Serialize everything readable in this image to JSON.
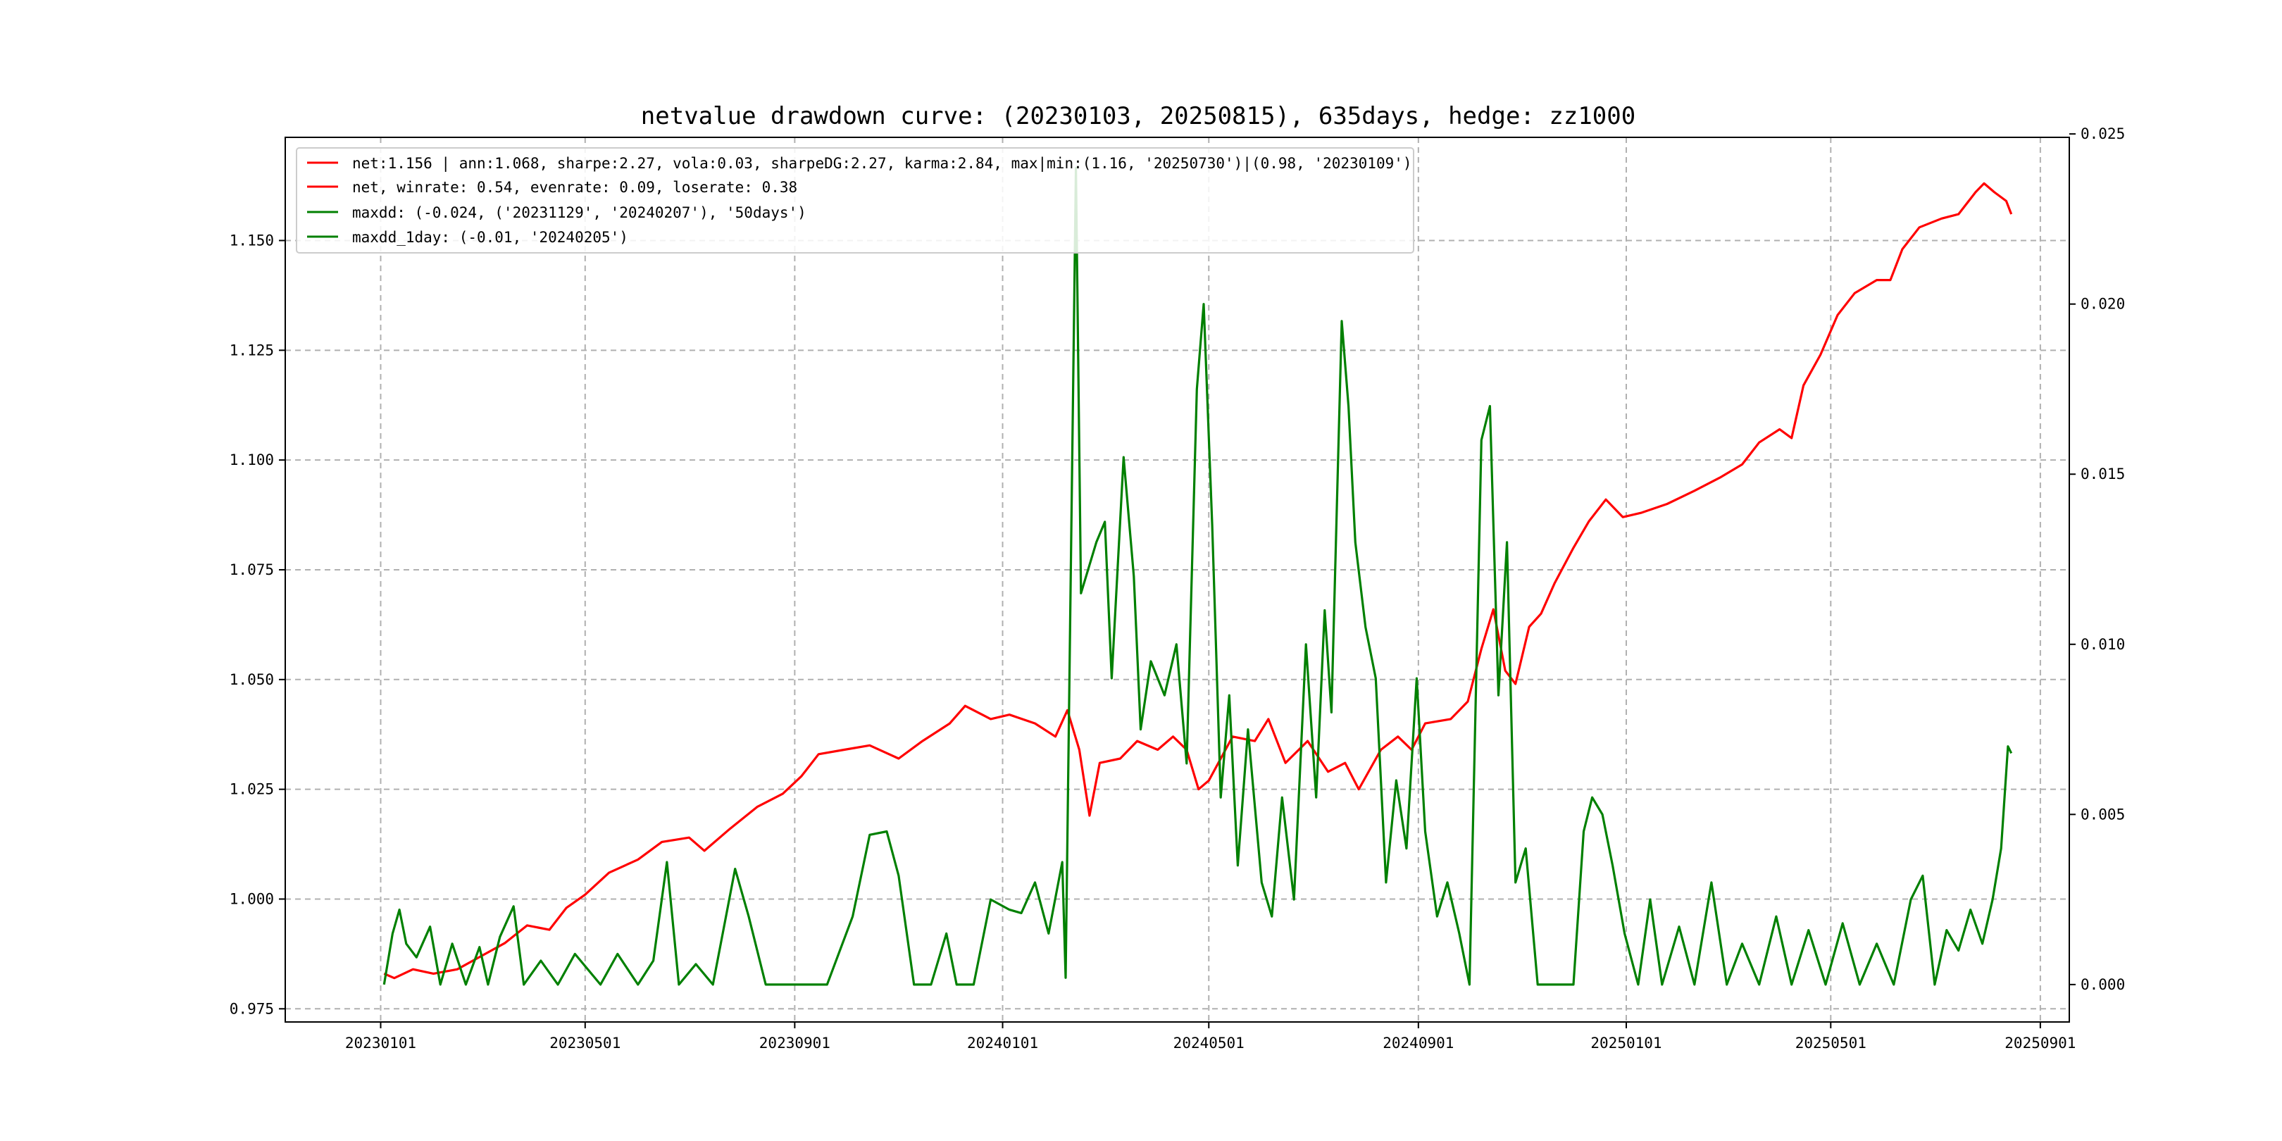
{
  "chart_data": {
    "type": "line",
    "title": "netvalue drawdown curve: (20230103, 20250815), 635days, hedge: zz1000",
    "xlabel": "",
    "ylabel": "",
    "x_ticks": [
      "20230101",
      "20230501",
      "20230901",
      "20240101",
      "20240501",
      "20240901",
      "20250101",
      "20250501",
      "20250901"
    ],
    "y_left_ticks": [
      "0.975",
      "1.000",
      "1.025",
      "1.050",
      "1.075",
      "1.100",
      "1.125",
      "1.150"
    ],
    "y_right_ticks": [
      "0.000",
      "0.005",
      "0.010",
      "0.015",
      "0.020",
      "0.025"
    ],
    "y_left_lim": [
      0.972,
      1.1735
    ],
    "y_right_lim": [
      -0.0011,
      0.0249
    ],
    "grid": true,
    "legend_position": "top-left",
    "series": [
      {
        "name": "net:1.156 | ann:1.068, sharpe:2.27, vola:0.03, sharpeDG:2.27, karma:2.84, max|min:(1.16, '20250730')|(0.98, '20230109')",
        "axis": "left",
        "color": "#ff0000",
        "points": [
          [
            "2023-01-03",
            0.983
          ],
          [
            "2023-01-09",
            0.982
          ],
          [
            "2023-01-20",
            0.984
          ],
          [
            "2023-02-01",
            0.983
          ],
          [
            "2023-02-15",
            0.984
          ],
          [
            "2023-03-01",
            0.987
          ],
          [
            "2023-03-15",
            0.99
          ],
          [
            "2023-03-28",
            0.994
          ],
          [
            "2023-04-10",
            0.993
          ],
          [
            "2023-04-20",
            0.998
          ],
          [
            "2023-05-01",
            1.001
          ],
          [
            "2023-05-15",
            1.006
          ],
          [
            "2023-06-01",
            1.009
          ],
          [
            "2023-06-15",
            1.013
          ],
          [
            "2023-07-01",
            1.014
          ],
          [
            "2023-07-10",
            1.011
          ],
          [
            "2023-07-25",
            1.016
          ],
          [
            "2023-08-10",
            1.021
          ],
          [
            "2023-08-25",
            1.024
          ],
          [
            "2023-09-05",
            1.028
          ],
          [
            "2023-09-15",
            1.033
          ],
          [
            "2023-09-30",
            1.034
          ],
          [
            "2023-10-15",
            1.035
          ],
          [
            "2023-11-01",
            1.032
          ],
          [
            "2023-11-15",
            1.036
          ],
          [
            "2023-12-01",
            1.04
          ],
          [
            "2023-12-10",
            1.044
          ],
          [
            "2023-12-25",
            1.041
          ],
          [
            "2024-01-05",
            1.042
          ],
          [
            "2024-01-20",
            1.04
          ],
          [
            "2024-02-01",
            1.037
          ],
          [
            "2024-02-08",
            1.043
          ],
          [
            "2024-02-15",
            1.034
          ],
          [
            "2024-02-21",
            1.019
          ],
          [
            "2024-02-27",
            1.031
          ],
          [
            "2024-03-10",
            1.032
          ],
          [
            "2024-03-20",
            1.036
          ],
          [
            "2024-04-01",
            1.034
          ],
          [
            "2024-04-10",
            1.037
          ],
          [
            "2024-04-18",
            1.034
          ],
          [
            "2024-04-25",
            1.025
          ],
          [
            "2024-05-01",
            1.027
          ],
          [
            "2024-05-15",
            1.037
          ],
          [
            "2024-05-28",
            1.036
          ],
          [
            "2024-06-05",
            1.041
          ],
          [
            "2024-06-15",
            1.031
          ],
          [
            "2024-06-28",
            1.036
          ],
          [
            "2024-07-10",
            1.029
          ],
          [
            "2024-07-20",
            1.031
          ],
          [
            "2024-07-28",
            1.025
          ],
          [
            "2024-08-10",
            1.034
          ],
          [
            "2024-08-20",
            1.037
          ],
          [
            "2024-08-28",
            1.034
          ],
          [
            "2024-09-05",
            1.04
          ],
          [
            "2024-09-20",
            1.041
          ],
          [
            "2024-09-30",
            1.045
          ],
          [
            "2024-10-08",
            1.057
          ],
          [
            "2024-10-15",
            1.066
          ],
          [
            "2024-10-22",
            1.052
          ],
          [
            "2024-10-28",
            1.049
          ],
          [
            "2024-11-05",
            1.062
          ],
          [
            "2024-11-12",
            1.065
          ],
          [
            "2024-11-20",
            1.072
          ],
          [
            "2024-12-01",
            1.08
          ],
          [
            "2024-12-10",
            1.086
          ],
          [
            "2024-12-20",
            1.091
          ],
          [
            "2024-12-30",
            1.087
          ],
          [
            "2025-01-10",
            1.088
          ],
          [
            "2025-01-25",
            1.09
          ],
          [
            "2025-02-10",
            1.093
          ],
          [
            "2025-02-25",
            1.096
          ],
          [
            "2025-03-10",
            1.099
          ],
          [
            "2025-03-20",
            1.104
          ],
          [
            "2025-04-01",
            1.107
          ],
          [
            "2025-04-08",
            1.105
          ],
          [
            "2025-04-15",
            1.117
          ],
          [
            "2025-04-25",
            1.124
          ],
          [
            "2025-05-05",
            1.133
          ],
          [
            "2025-05-15",
            1.138
          ],
          [
            "2025-05-28",
            1.141
          ],
          [
            "2025-06-05",
            1.141
          ],
          [
            "2025-06-12",
            1.148
          ],
          [
            "2025-06-22",
            1.153
          ],
          [
            "2025-07-05",
            1.155
          ],
          [
            "2025-07-15",
            1.156
          ],
          [
            "2025-07-25",
            1.161
          ],
          [
            "2025-07-30",
            1.163
          ],
          [
            "2025-08-05",
            1.161
          ],
          [
            "2025-08-12",
            1.159
          ],
          [
            "2025-08-15",
            1.156
          ]
        ]
      },
      {
        "name": "net, winrate: 0.54, evenrate: 0.09, loserate: 0.38",
        "axis": "left",
        "color": "#ff0000",
        "points": []
      },
      {
        "name": "maxdd: (-0.024, ('20231129', '20240207'), '50days')",
        "axis": "right",
        "color": "#008000",
        "points": [
          [
            "2023-01-03",
            0.0
          ],
          [
            "2023-01-08",
            0.0015
          ],
          [
            "2023-01-12",
            0.0022
          ],
          [
            "2023-01-16",
            0.0012
          ],
          [
            "2023-01-22",
            0.0008
          ],
          [
            "2023-01-30",
            0.0017
          ],
          [
            "2023-02-05",
            0.0
          ],
          [
            "2023-02-12",
            0.0012
          ],
          [
            "2023-02-20",
            0.0
          ],
          [
            "2023-02-28",
            0.0011
          ],
          [
            "2023-03-05",
            0.0
          ],
          [
            "2023-03-12",
            0.0014
          ],
          [
            "2023-03-20",
            0.0023
          ],
          [
            "2023-03-26",
            0.0
          ],
          [
            "2023-04-05",
            0.0007
          ],
          [
            "2023-04-15",
            0.0
          ],
          [
            "2023-04-25",
            0.0009
          ],
          [
            "2023-05-10",
            0.0
          ],
          [
            "2023-05-20",
            0.0009
          ],
          [
            "2023-06-01",
            0.0
          ],
          [
            "2023-06-10",
            0.0007
          ],
          [
            "2023-06-18",
            0.0036
          ],
          [
            "2023-06-25",
            0.0
          ],
          [
            "2023-07-05",
            0.0006
          ],
          [
            "2023-07-15",
            0.0
          ],
          [
            "2023-07-28",
            0.0034
          ],
          [
            "2023-08-05",
            0.002
          ],
          [
            "2023-08-15",
            0.0
          ],
          [
            "2023-08-25",
            0.0
          ],
          [
            "2023-09-05",
            0.0
          ],
          [
            "2023-09-20",
            0.0
          ],
          [
            "2023-10-05",
            0.002
          ],
          [
            "2023-10-15",
            0.0044
          ],
          [
            "2023-10-25",
            0.0045
          ],
          [
            "2023-11-01",
            0.0032
          ],
          [
            "2023-11-10",
            0.0
          ],
          [
            "2023-11-20",
            0.0
          ],
          [
            "2023-11-29",
            0.0015
          ],
          [
            "2023-12-05",
            0.0
          ],
          [
            "2023-12-15",
            0.0
          ],
          [
            "2023-12-25",
            0.0025
          ],
          [
            "2024-01-05",
            0.0022
          ],
          [
            "2024-01-12",
            0.0021
          ],
          [
            "2024-01-20",
            0.003
          ],
          [
            "2024-01-28",
            0.0015
          ],
          [
            "2024-02-05",
            0.0036
          ],
          [
            "2024-02-07",
            0.0002
          ],
          [
            "2024-02-13",
            0.024
          ],
          [
            "2024-02-16",
            0.0115
          ],
          [
            "2024-02-25",
            0.013
          ],
          [
            "2024-03-01",
            0.0136
          ],
          [
            "2024-03-05",
            0.009
          ],
          [
            "2024-03-12",
            0.0155
          ],
          [
            "2024-03-18",
            0.012
          ],
          [
            "2024-03-22",
            0.0075
          ],
          [
            "2024-03-28",
            0.0095
          ],
          [
            "2024-04-05",
            0.0085
          ],
          [
            "2024-04-12",
            0.01
          ],
          [
            "2024-04-18",
            0.0065
          ],
          [
            "2024-04-24",
            0.0175
          ],
          [
            "2024-04-28",
            0.02
          ],
          [
            "2024-05-03",
            0.0135
          ],
          [
            "2024-05-08",
            0.0055
          ],
          [
            "2024-05-13",
            0.0085
          ],
          [
            "2024-05-18",
            0.0035
          ],
          [
            "2024-05-24",
            0.0075
          ],
          [
            "2024-06-01",
            0.003
          ],
          [
            "2024-06-07",
            0.002
          ],
          [
            "2024-06-13",
            0.0055
          ],
          [
            "2024-06-20",
            0.0025
          ],
          [
            "2024-06-27",
            0.01
          ],
          [
            "2024-07-03",
            0.0055
          ],
          [
            "2024-07-08",
            0.011
          ],
          [
            "2024-07-12",
            0.008
          ],
          [
            "2024-07-18",
            0.0195
          ],
          [
            "2024-07-22",
            0.017
          ],
          [
            "2024-07-26",
            0.013
          ],
          [
            "2024-08-01",
            0.0105
          ],
          [
            "2024-08-07",
            0.009
          ],
          [
            "2024-08-13",
            0.003
          ],
          [
            "2024-08-19",
            0.006
          ],
          [
            "2024-08-25",
            0.004
          ],
          [
            "2024-08-31",
            0.009
          ],
          [
            "2024-09-05",
            0.0045
          ],
          [
            "2024-09-12",
            0.002
          ],
          [
            "2024-09-18",
            0.003
          ],
          [
            "2024-09-25",
            0.0015
          ],
          [
            "2024-10-01",
            0.0
          ],
          [
            "2024-10-08",
            0.016
          ],
          [
            "2024-10-13",
            0.017
          ],
          [
            "2024-10-18",
            0.0085
          ],
          [
            "2024-10-23",
            0.013
          ],
          [
            "2024-10-28",
            0.003
          ],
          [
            "2024-11-03",
            0.004
          ],
          [
            "2024-11-10",
            0.0
          ],
          [
            "2024-11-20",
            0.0
          ],
          [
            "2024-12-01",
            0.0
          ],
          [
            "2024-12-07",
            0.0045
          ],
          [
            "2024-12-12",
            0.0055
          ],
          [
            "2024-12-18",
            0.005
          ],
          [
            "2024-12-24",
            0.0035
          ],
          [
            "2024-12-31",
            0.0015
          ],
          [
            "2025-01-08",
            0.0
          ],
          [
            "2025-01-15",
            0.0025
          ],
          [
            "2025-01-22",
            0.0
          ],
          [
            "2025-02-01",
            0.0017
          ],
          [
            "2025-02-10",
            0.0
          ],
          [
            "2025-02-20",
            0.003
          ],
          [
            "2025-03-01",
            0.0
          ],
          [
            "2025-03-10",
            0.0012
          ],
          [
            "2025-03-20",
            0.0
          ],
          [
            "2025-03-30",
            0.002
          ],
          [
            "2025-04-08",
            0.0
          ],
          [
            "2025-04-18",
            0.0016
          ],
          [
            "2025-04-28",
            0.0
          ],
          [
            "2025-05-08",
            0.0018
          ],
          [
            "2025-05-18",
            0.0
          ],
          [
            "2025-05-28",
            0.0012
          ],
          [
            "2025-06-07",
            0.0
          ],
          [
            "2025-06-17",
            0.0025
          ],
          [
            "2025-06-24",
            0.0032
          ],
          [
            "2025-07-01",
            0.0
          ],
          [
            "2025-07-08",
            0.0016
          ],
          [
            "2025-07-15",
            0.001
          ],
          [
            "2025-07-22",
            0.0022
          ],
          [
            "2025-07-29",
            0.0012
          ],
          [
            "2025-08-04",
            0.0025
          ],
          [
            "2025-08-09",
            0.004
          ],
          [
            "2025-08-13",
            0.007
          ],
          [
            "2025-08-15",
            0.0068
          ]
        ]
      },
      {
        "name": "maxdd_1day: (-0.01, '20240205')",
        "axis": "right",
        "color": "#008000",
        "points": []
      }
    ]
  }
}
